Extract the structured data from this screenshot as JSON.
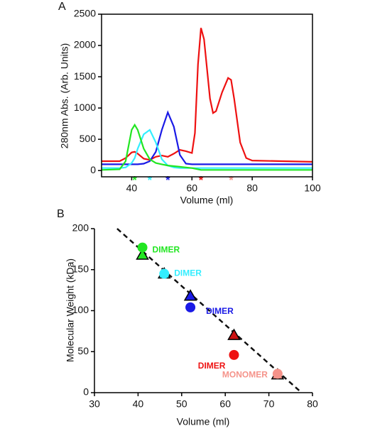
{
  "chart_data": [
    {
      "type": "line",
      "panel_label": "A",
      "xlabel": "Volume (ml)",
      "ylabel": "280nm Abs. (Arb. Units)",
      "xlim": [
        30,
        100
      ],
      "ylim": [
        -100,
        2500
      ],
      "xticks": [
        40,
        60,
        80,
        100
      ],
      "yticks": [
        0,
        500,
        1000,
        1500,
        2000,
        2500
      ],
      "x": [
        30,
        36,
        38,
        40,
        41,
        42,
        44,
        46,
        48,
        50,
        52,
        54,
        56,
        58,
        60,
        61,
        62,
        63,
        64,
        66,
        67,
        68,
        70,
        72,
        73,
        74,
        76,
        78,
        80,
        90,
        100
      ],
      "series": [
        {
          "color": "#ee1111",
          "values": [
            150,
            150,
            200,
            290,
            300,
            270,
            190,
            170,
            220,
            240,
            220,
            270,
            330,
            310,
            280,
            600,
            1700,
            2280,
            2100,
            1150,
            920,
            950,
            1250,
            1480,
            1450,
            1150,
            450,
            200,
            160,
            150,
            140
          ]
        },
        {
          "color": "#1a1ae6",
          "values": [
            100,
            100,
            100,
            100,
            100,
            100,
            110,
            150,
            300,
            650,
            930,
            700,
            250,
            110,
            100,
            100,
            100,
            100,
            100,
            100,
            100,
            100,
            100,
            100,
            100,
            100,
            100,
            100,
            100,
            100,
            100
          ]
        },
        {
          "color": "#33eeff",
          "values": [
            40,
            40,
            50,
            120,
            200,
            350,
            580,
            650,
            450,
            180,
            80,
            50,
            40,
            40,
            40,
            40,
            40,
            40,
            40,
            40,
            40,
            40,
            40,
            40,
            40,
            40,
            40,
            40,
            40,
            40,
            40
          ]
        },
        {
          "color": "#22e622",
          "values": [
            10,
            20,
            150,
            650,
            730,
            650,
            350,
            180,
            120,
            100,
            80,
            70,
            60,
            50,
            40,
            30,
            20,
            10,
            10,
            10,
            10,
            10,
            10,
            10,
            10,
            10,
            10,
            10,
            10,
            10,
            10
          ]
        }
      ],
      "asterisks": [
        {
          "text": "*",
          "x": 41,
          "color": "#22e622"
        },
        {
          "text": "*",
          "x": 46,
          "color": "#33eeff"
        },
        {
          "text": "*",
          "x": 52,
          "color": "#1a1ae6"
        },
        {
          "text": "*",
          "x": 63,
          "color": "#ee1111"
        },
        {
          "text": "*",
          "x": 73,
          "color": "#f5938a"
        }
      ]
    },
    {
      "type": "scatter",
      "panel_label": "B",
      "xlabel": "Volume (ml)",
      "ylabel": "Molecular Weight (kDa)",
      "xlim": [
        30,
        80
      ],
      "ylim": [
        0,
        200
      ],
      "xticks": [
        30,
        40,
        50,
        60,
        70,
        80
      ],
      "yticks": [
        0,
        50,
        100,
        150,
        200
      ],
      "series": [
        {
          "marker": "triangle",
          "colors": [
            "#22e622",
            "#33eeff",
            "#1a1ae6",
            "#cc1111",
            "#f5938a"
          ],
          "x": [
            41,
            46,
            52,
            62,
            72
          ],
          "values": [
            168,
            145,
            118,
            70,
            22
          ]
        },
        {
          "marker": "circle",
          "colors": [
            "#22e622",
            "#33eeff",
            "#1a1ae6",
            "#ee1111",
            "#f5938a"
          ],
          "x": [
            41,
            46,
            52,
            62,
            72
          ],
          "values": [
            177,
            145,
            104,
            46,
            23
          ],
          "point_labels": [
            "DIMER",
            "DIMER",
            "DIMER",
            "DIMER",
            "MONOMER"
          ]
        }
      ],
      "fit_line": {
        "x": [
          35.2,
          77.5
        ],
        "y": [
          200,
          0
        ]
      }
    }
  ]
}
